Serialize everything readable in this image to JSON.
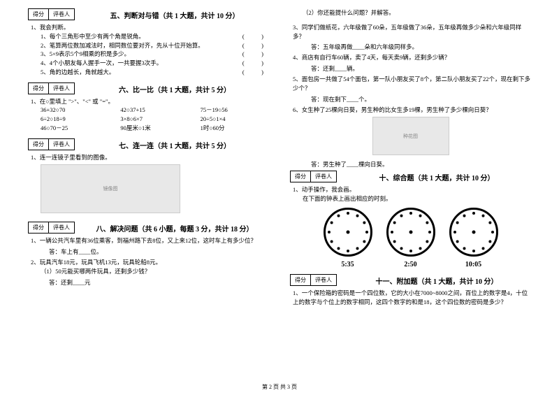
{
  "scoreBox": {
    "score": "得分",
    "reviewer": "评卷人"
  },
  "sec5": {
    "title": "五、判断对与错（共 1 大题，共计 10 分）",
    "intro": "1、我会判断。",
    "items": [
      "1、每个三角形中至少有两个角是锐角。",
      "2、笔算两位数加减法时，相同数位要对齐，先从十位开始算。",
      "3、5×9表示5个9相乘的积是多少。",
      "4、4个小朋友每人握手一次，一共要握3次手。",
      "5、角的边越长，角就越大。"
    ]
  },
  "sec6": {
    "title": "六、比一比（共 1 大题，共计 5 分）",
    "intro": "1、在○里填上 \">\"、\"<\" 或 \"=\"。",
    "rows": [
      [
        "36+32○70",
        "42○37+15",
        "75－19○56"
      ],
      [
        "6÷2○18÷9",
        "3×8○6×7",
        "20÷5○1×4"
      ],
      [
        "46○70－25",
        "90厘米○1米",
        "1时○60分"
      ]
    ]
  },
  "sec7": {
    "title": "七、连一连（共 1 大题，共计 5 分）",
    "intro": "1、连一连镜子里看到的图像。"
  },
  "sec8": {
    "title": "八、解决问题（共 6 小题，每题 3 分，共计 18 分）",
    "q1": "1、一辆公共汽车里有36位乘客，到福州路下去8位，又上来12位，这时车上有多少位？",
    "a1": "答：车上有____位。",
    "q2": "2、玩具汽车18元，玩具飞机13元，玩具轮船8元。",
    "q2a": "（1）50元能买哪两件玩具，还剩多少钱？",
    "a2": "答：还剩____元",
    "q2b": "（2）你还能提什么问题？并解答。",
    "q3": "3、同学们做纸花，六年级做了60朵，五年级做了36朵，五年级再做多少朵和六年级同样多？",
    "a3": "答：五年级再做____朵和六年级同样多。",
    "q4": "4、商店有自行车60辆，卖了4天，每天卖9辆，还剩多少辆？",
    "a4": "答：还剩____辆。",
    "q5": "5、面包房一共做了54个面包，第一队小朋友买了8个，第二队小朋友买了22个，现在剩下多少个？",
    "a5": "答：现在剩下____个。",
    "q6": "6、女生种了25棵向日葵，男生种的比女生多19棵，男生种了多少棵向日葵？",
    "a6": "答：男生种了____棵向日葵。"
  },
  "sec10": {
    "title": "十、综合题（共 1 大题，共计 10 分）",
    "intro": "1、动手操作，我会画。",
    "sub": "在下面的钟表上画出相应的时刻。",
    "times": [
      "5:35",
      "2:50",
      "10:05"
    ]
  },
  "sec11": {
    "title": "十一、附加题（共 1 大题，共计 10 分）",
    "q": "1、一个保险箱的密码是一个四位数，它的大小在7000~8000之间，百位上的数字是4，十位上的数字与个位上的数字相同，这四个数字的和是18，这个四位数的密码是多少？"
  },
  "footer": "第 2 页 共 3 页"
}
